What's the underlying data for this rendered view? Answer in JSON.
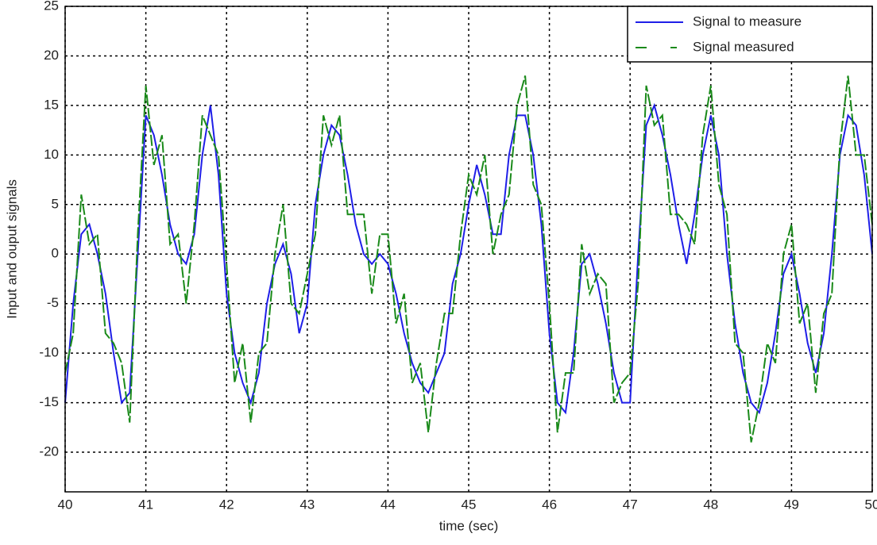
{
  "chart_data": {
    "type": "line",
    "xlabel": "time (sec)",
    "ylabel": "Input and ouput signals",
    "x": [
      40,
      40.1,
      40.2,
      40.3,
      40.4,
      40.5,
      40.6,
      40.7,
      40.8,
      40.9,
      41,
      41.1,
      41.2,
      41.3,
      41.4,
      41.5,
      41.6,
      41.7,
      41.8,
      41.9,
      42,
      42.1,
      42.2,
      42.3,
      42.4,
      42.5,
      42.6,
      42.7,
      42.8,
      42.9,
      43,
      43.1,
      43.2,
      43.3,
      43.4,
      43.5,
      43.6,
      43.7,
      43.8,
      43.9,
      44,
      44.1,
      44.2,
      44.3,
      44.4,
      44.5,
      44.6,
      44.7,
      44.8,
      44.9,
      45,
      45.1,
      45.2,
      45.3,
      45.4,
      45.5,
      45.6,
      45.7,
      45.8,
      45.9,
      46,
      46.1,
      46.2,
      46.3,
      46.4,
      46.5,
      46.6,
      46.7,
      46.8,
      46.9,
      47,
      47.1,
      47.2,
      47.3,
      47.4,
      47.5,
      47.6,
      47.7,
      47.8,
      47.9,
      48,
      48.1,
      48.2,
      48.3,
      48.4,
      48.5,
      48.6,
      48.7,
      48.8,
      48.9,
      49,
      49.1,
      49.2,
      49.3,
      49.4,
      49.5,
      49.6,
      49.7,
      49.8,
      49.9,
      50
    ],
    "series": [
      {
        "name": "Signal to measure",
        "color": "#1f1fe8",
        "values": [
          -15,
          -5,
          2,
          3,
          0,
          -4,
          -10,
          -15,
          -14,
          0,
          14,
          12,
          8,
          3,
          0,
          -1,
          2,
          10,
          15,
          8,
          -4,
          -10,
          -13,
          -15,
          -12,
          -5,
          -1,
          1,
          -2,
          -8,
          -5,
          5,
          10,
          13,
          12,
          8,
          3,
          0,
          -1,
          0,
          -1,
          -4,
          -8,
          -11,
          -13,
          -14,
          -12,
          -10,
          -3,
          0,
          5,
          9,
          6,
          2,
          2,
          10,
          14,
          14,
          10,
          3,
          -8,
          -15,
          -16,
          -10,
          -1,
          0,
          -3,
          -7,
          -12,
          -15,
          -15,
          0,
          13,
          15,
          12,
          8,
          3,
          -1,
          4,
          10,
          14,
          10,
          0,
          -7,
          -12,
          -15,
          -16,
          -13,
          -8,
          -2,
          0,
          -4,
          -9,
          -12,
          -8,
          0,
          10,
          14,
          13,
          8,
          0
        ]
      },
      {
        "name": "Signal measured",
        "color": "#1a8a1a",
        "values": [
          -12,
          -8,
          6,
          1,
          2,
          -8,
          -9,
          -11,
          -17,
          2,
          17,
          9,
          12,
          1,
          2,
          -5,
          3,
          14,
          12,
          10,
          -1,
          -13,
          -9,
          -17,
          -10,
          -9,
          0,
          5,
          -5,
          -6,
          -2,
          2,
          14,
          11,
          14,
          4,
          4,
          4,
          -4,
          2,
          2,
          -7,
          -4,
          -13,
          -11,
          -18,
          -11,
          -6,
          -6,
          2,
          8,
          6,
          10,
          0,
          4,
          6,
          15,
          18,
          7,
          5,
          -5,
          -18,
          -12,
          -12,
          1,
          -4,
          -2,
          -3,
          -15,
          -13,
          -12,
          -3,
          17,
          13,
          14,
          4,
          4,
          3,
          1,
          12,
          17,
          7,
          4,
          -9,
          -10,
          -19,
          -15,
          -9,
          -11,
          0,
          3,
          -7,
          -5,
          -14,
          -6,
          -4,
          11,
          18,
          10,
          10,
          3
        ]
      }
    ],
    "xlim": [
      40,
      50
    ],
    "xticks": [
      40,
      41,
      42,
      43,
      44,
      45,
      46,
      47,
      48,
      49,
      50
    ],
    "ylim": [
      -24,
      25
    ],
    "yticks": [
      -20,
      -15,
      -10,
      -5,
      0,
      5,
      10,
      15,
      20,
      25
    ],
    "grid": true,
    "legend": "upper right"
  }
}
